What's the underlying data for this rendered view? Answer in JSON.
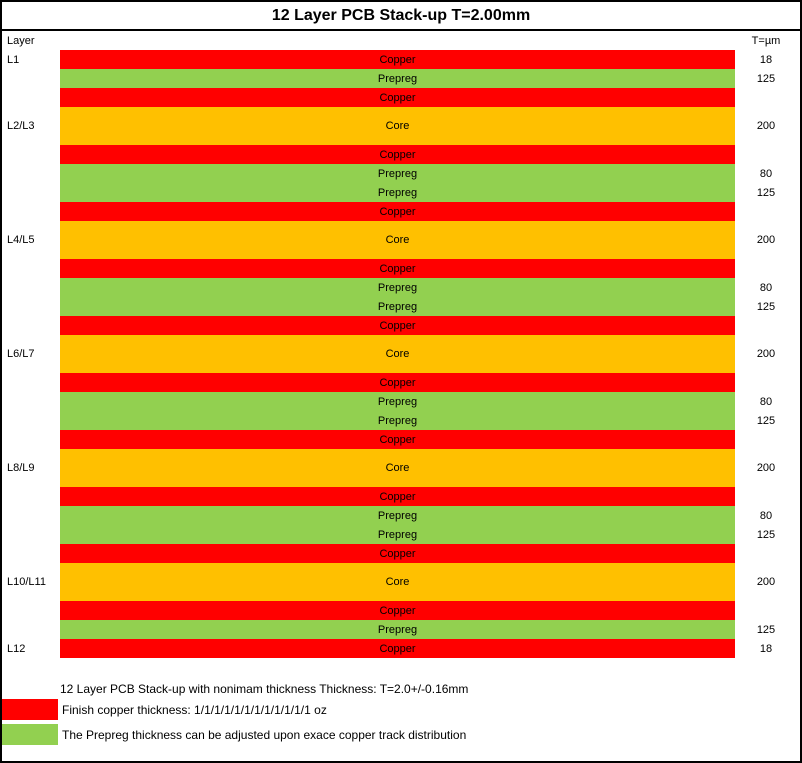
{
  "title": "12 Layer PCB Stack-up T=2.00mm",
  "header": {
    "layer_label": "Layer",
    "thickness_label": "T=µm"
  },
  "colors": {
    "copper": "#FF0000",
    "prepreg": "#92D050",
    "core": "#FFC000"
  },
  "stack": {
    "rows": [
      {
        "layer": "L1",
        "material": "Copper",
        "type": "copper",
        "thickness": "18"
      },
      {
        "layer": "",
        "material": "Prepreg",
        "type": "prepreg",
        "thickness": "125"
      },
      {
        "layer": "",
        "material": "Copper",
        "type": "copper",
        "thickness": ""
      },
      {
        "layer": "L2/L3",
        "material": "Core",
        "type": "core",
        "thickness": "200"
      },
      {
        "layer": "",
        "material": "Copper",
        "type": "copper",
        "thickness": ""
      },
      {
        "layer": "",
        "material": "Prepreg",
        "type": "prepreg",
        "thickness": "80"
      },
      {
        "layer": "",
        "material": "Prepreg",
        "type": "prepreg",
        "thickness": "125"
      },
      {
        "layer": "",
        "material": "Copper",
        "type": "copper",
        "thickness": ""
      },
      {
        "layer": "L4/L5",
        "material": "Core",
        "type": "core",
        "thickness": "200"
      },
      {
        "layer": "",
        "material": "Copper",
        "type": "copper",
        "thickness": ""
      },
      {
        "layer": "",
        "material": "Prepreg",
        "type": "prepreg",
        "thickness": "80"
      },
      {
        "layer": "",
        "material": "Prepreg",
        "type": "prepreg",
        "thickness": "125"
      },
      {
        "layer": "",
        "material": "Copper",
        "type": "copper",
        "thickness": ""
      },
      {
        "layer": "L6/L7",
        "material": "Core",
        "type": "core",
        "thickness": "200"
      },
      {
        "layer": "",
        "material": "Copper",
        "type": "copper",
        "thickness": ""
      },
      {
        "layer": "",
        "material": "Prepreg",
        "type": "prepreg",
        "thickness": "80"
      },
      {
        "layer": "",
        "material": "Prepreg",
        "type": "prepreg",
        "thickness": "125"
      },
      {
        "layer": "",
        "material": "Copper",
        "type": "copper",
        "thickness": ""
      },
      {
        "layer": "L8/L9",
        "material": "Core",
        "type": "core",
        "thickness": "200"
      },
      {
        "layer": "",
        "material": "Copper",
        "type": "copper",
        "thickness": ""
      },
      {
        "layer": "",
        "material": "Prepreg",
        "type": "prepreg",
        "thickness": "80"
      },
      {
        "layer": "",
        "material": "Prepreg",
        "type": "prepreg",
        "thickness": "125"
      },
      {
        "layer": "",
        "material": "Copper",
        "type": "copper",
        "thickness": ""
      },
      {
        "layer": "L10/L11",
        "material": "Core",
        "type": "core",
        "thickness": "200"
      },
      {
        "layer": "",
        "material": "Copper",
        "type": "copper",
        "thickness": ""
      },
      {
        "layer": "",
        "material": "Prepreg",
        "type": "prepreg",
        "thickness": "125"
      },
      {
        "layer": "L12",
        "material": "Copper",
        "type": "copper",
        "thickness": "18"
      }
    ]
  },
  "notes": {
    "summary": "12 Layer PCB Stack-up with nonimam thickness Thickness: T=2.0+/-0.16mm",
    "copper_note": "Finish copper thickness: 1/1/1/1/1/1/1/1/1/1/1/1 oz",
    "prepreg_note": "The Prepreg thickness can be adjusted upon exace copper track distribution"
  }
}
